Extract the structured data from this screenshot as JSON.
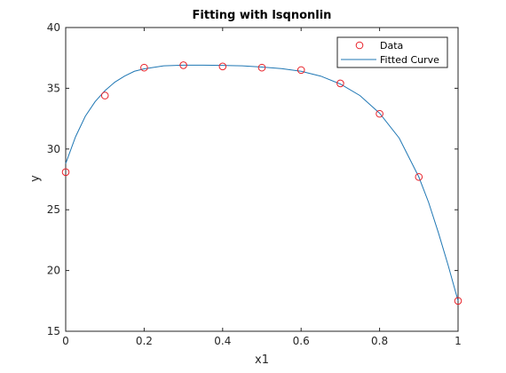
{
  "chart_data": {
    "type": "line",
    "title": "Fitting with lsqnonlin",
    "xlabel": "x1",
    "ylabel": "y",
    "xlim": [
      0,
      1
    ],
    "ylim": [
      15,
      40
    ],
    "xticks": [
      0,
      0.2,
      0.4,
      0.6,
      0.8,
      1
    ],
    "xtick_labels": [
      "0",
      "0.2",
      "0.4",
      "0.6",
      "0.8",
      "1"
    ],
    "yticks": [
      15,
      20,
      25,
      30,
      35,
      40
    ],
    "ytick_labels": [
      "15",
      "20",
      "25",
      "30",
      "35",
      "40"
    ],
    "grid": false,
    "legend": "top-right",
    "series": [
      {
        "name": "Data",
        "style": "markers",
        "marker": "circle-open",
        "color": "#e8222a",
        "x": [
          0,
          0.1,
          0.2,
          0.3,
          0.4,
          0.5,
          0.6,
          0.7,
          0.8,
          0.9,
          1
        ],
        "y": [
          28.1,
          34.4,
          36.7,
          36.9,
          36.8,
          36.7,
          36.5,
          35.4,
          32.9,
          27.7,
          17.5
        ]
      },
      {
        "name": "Fitted Curve",
        "style": "line",
        "color": "#1f77b4",
        "x": [
          0,
          0.025,
          0.05,
          0.075,
          0.1,
          0.125,
          0.15,
          0.175,
          0.2,
          0.25,
          0.3,
          0.35,
          0.4,
          0.45,
          0.5,
          0.55,
          0.6,
          0.65,
          0.7,
          0.75,
          0.8,
          0.85,
          0.9,
          0.925,
          0.95,
          0.975,
          1
        ],
        "y": [
          28.8,
          31.0,
          32.7,
          33.9,
          34.8,
          35.5,
          36.0,
          36.4,
          36.6,
          36.85,
          36.9,
          36.9,
          36.88,
          36.85,
          36.75,
          36.62,
          36.4,
          36.0,
          35.35,
          34.4,
          32.95,
          30.9,
          27.7,
          25.6,
          23.1,
          20.4,
          17.5
        ]
      }
    ]
  }
}
